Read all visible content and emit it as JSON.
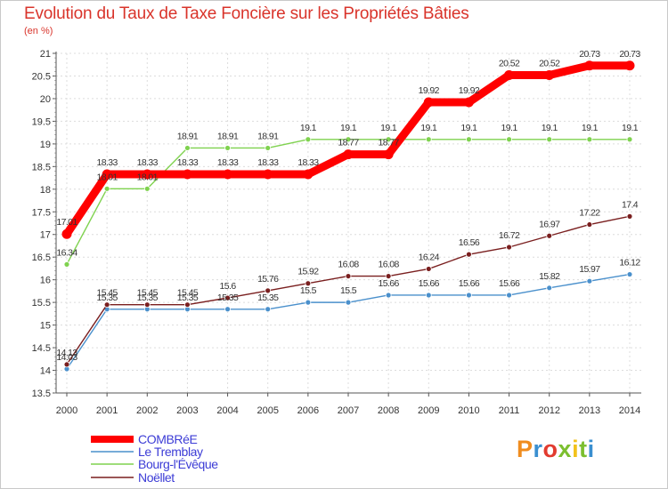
{
  "title": "Evolution du Taux de Taxe Foncière sur les Propriétés Bâties",
  "subtitle": "(en %)",
  "brand": {
    "text": "Proxiti",
    "letters": [
      "P",
      "r",
      "o",
      "x",
      "i",
      "t",
      "i"
    ],
    "colors": [
      "#f08c1e",
      "#3a8fd0",
      "#e23b2f",
      "#7cbf2f",
      "#f2c21b",
      "#7cbf2f",
      "#3a8fd0"
    ]
  },
  "chart_data": {
    "type": "line",
    "title": "Evolution du Taux de Taxe Foncière sur les Propriétés Bâties",
    "ylabel": "(en %)",
    "xlabel": "",
    "ylim": [
      13.5,
      21
    ],
    "yticks": [
      "13.5",
      "14",
      "14.5",
      "15",
      "15.5",
      "16",
      "16.5",
      "17",
      "17.5",
      "18",
      "18.5",
      "19",
      "19.5",
      "20",
      "20.5",
      "21"
    ],
    "x": [
      "2000",
      "2001",
      "2002",
      "2003",
      "2004",
      "2005",
      "2006",
      "2007",
      "2008",
      "2009",
      "2010",
      "2011",
      "2012",
      "2013",
      "2014"
    ],
    "series": [
      {
        "name": "COMBRéE",
        "color": "#ff0000",
        "values": [
          17.01,
          18.33,
          18.33,
          18.33,
          18.33,
          18.33,
          18.33,
          18.77,
          18.77,
          19.92,
          19.92,
          20.52,
          20.52,
          20.73,
          20.73
        ],
        "labels": [
          "17.01",
          "18.33",
          "18.33",
          "18.33",
          "18.33",
          "18.33",
          "18.33",
          "18.77",
          "18.77",
          "19.92",
          "19.92",
          "20.52",
          "20.52",
          "20.73",
          "20.73"
        ]
      },
      {
        "name": "Le Tremblay",
        "color": "#4a90cc",
        "values": [
          14.03,
          15.35,
          15.35,
          15.35,
          15.35,
          15.35,
          15.5,
          15.5,
          15.66,
          15.66,
          15.66,
          15.66,
          15.82,
          15.97,
          16.12
        ],
        "labels": [
          "14.03",
          "15.35",
          "15.35",
          "15.35",
          "15.35",
          "15.35",
          "15.5",
          "15.5",
          "15.66",
          "15.66",
          "15.66",
          "15.66",
          "15.82",
          "15.97",
          "16.12"
        ]
      },
      {
        "name": "Bourg-l'Évêque",
        "color": "#7fd24f",
        "values": [
          16.34,
          18.01,
          18.01,
          18.91,
          18.91,
          18.91,
          19.1,
          19.1,
          19.1,
          19.1,
          19.1,
          19.1,
          19.1,
          19.1,
          19.1
        ],
        "labels": [
          "16.34",
          "18.01",
          "18.01",
          "18.91",
          "18.91",
          "18.91",
          "19.1",
          "19.1",
          "19.1",
          "19.1",
          "19.1",
          "19.1",
          "19.1",
          "19.1",
          "19.1"
        ]
      },
      {
        "name": "Noëllet",
        "color": "#7a1f1f",
        "values": [
          14.13,
          15.45,
          15.45,
          15.45,
          15.6,
          15.76,
          15.92,
          16.08,
          16.08,
          16.24,
          16.56,
          16.72,
          16.97,
          17.22,
          17.4
        ],
        "labels": [
          "14.13",
          "15.45",
          "15.45",
          "15.45",
          "15.6",
          "15.76",
          "15.92",
          "16.08",
          "16.08",
          "16.24",
          "16.56",
          "16.72",
          "16.97",
          "17.22",
          "17.4"
        ]
      }
    ],
    "legend": "bottom-left"
  }
}
